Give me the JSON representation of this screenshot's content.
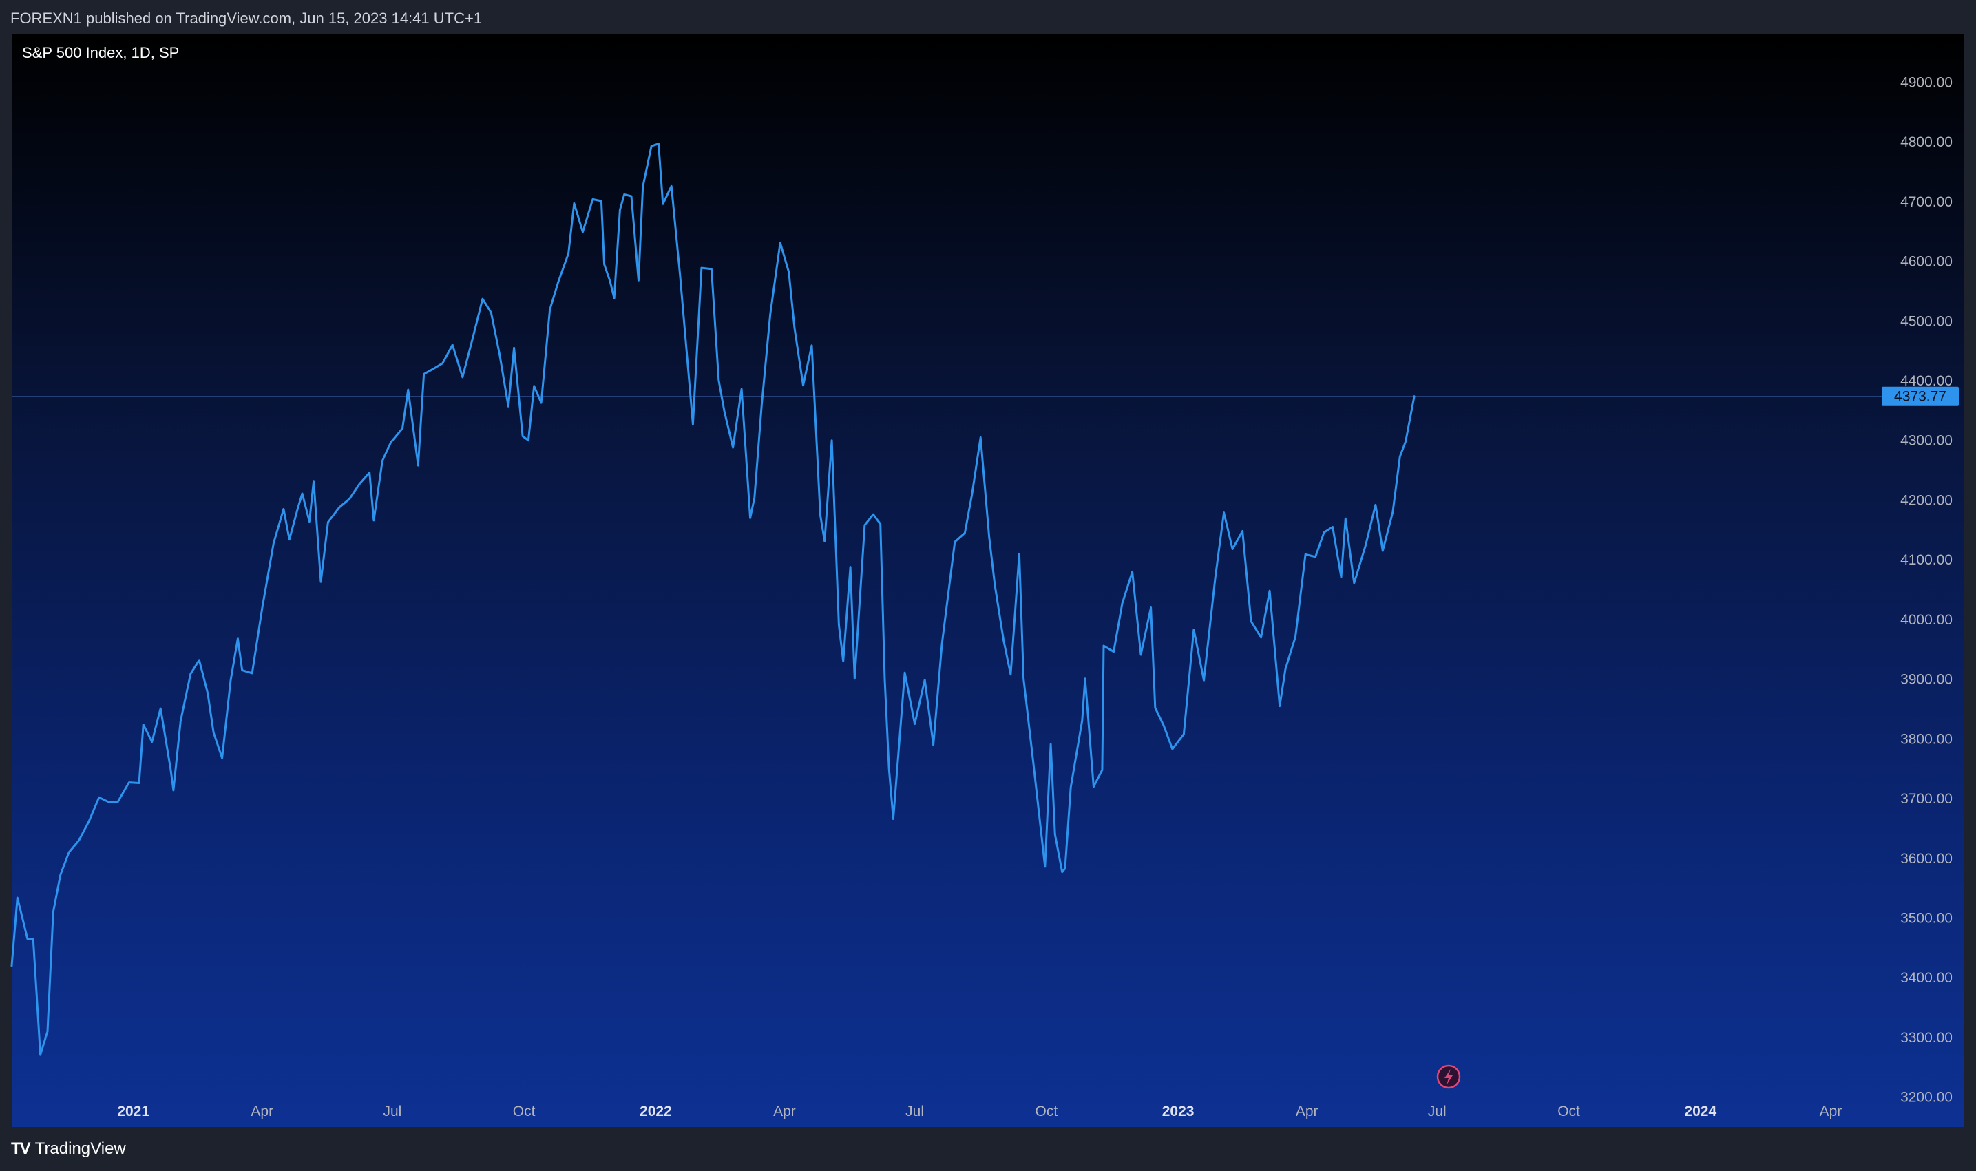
{
  "header": {
    "published": "FOREXN1 published on TradingView.com, Jun 15, 2023 14:41 UTC+1"
  },
  "footer": {
    "brand": "TradingView",
    "logo_icon": "tradingview-logo-icon"
  },
  "colors": {
    "line": "#2e93ec",
    "label_bg": "#2e93ec",
    "axis_text": "#b2b5be",
    "header_text": "#d1d4dc"
  },
  "chart_data": {
    "type": "line",
    "title": "S&P 500 Index, 1D, SP",
    "xlabel": "",
    "ylabel": "",
    "ylim": [
      3150,
      4980
    ],
    "y_ticks": [
      "4900.00",
      "4800.00",
      "4700.00",
      "4600.00",
      "4500.00",
      "4400.00",
      "4300.00",
      "4200.00",
      "4100.00",
      "4000.00",
      "3900.00",
      "3800.00",
      "3700.00",
      "3600.00",
      "3500.00",
      "3400.00",
      "3300.00",
      "3200.00"
    ],
    "x_ticks": [
      {
        "label": "2021",
        "date": "2021-01-01",
        "bold": true
      },
      {
        "label": "Apr",
        "date": "2021-04-01",
        "bold": false
      },
      {
        "label": "Jul",
        "date": "2021-07-01",
        "bold": false
      },
      {
        "label": "Oct",
        "date": "2021-10-01",
        "bold": false
      },
      {
        "label": "2022",
        "date": "2022-01-01",
        "bold": true
      },
      {
        "label": "Apr",
        "date": "2022-04-01",
        "bold": false
      },
      {
        "label": "Jul",
        "date": "2022-07-01",
        "bold": false
      },
      {
        "label": "Oct",
        "date": "2022-10-01",
        "bold": false
      },
      {
        "label": "2023",
        "date": "2023-01-01",
        "bold": true
      },
      {
        "label": "Apr",
        "date": "2023-04-01",
        "bold": false
      },
      {
        "label": "Jul",
        "date": "2023-07-01",
        "bold": false
      },
      {
        "label": "Oct",
        "date": "2023-10-01",
        "bold": false
      },
      {
        "label": "2024",
        "date": "2024-01-01",
        "bold": true
      },
      {
        "label": "Apr",
        "date": "2024-04-01",
        "bold": false
      }
    ],
    "xlim": [
      "2020-10-08",
      "2024-05-10"
    ],
    "last_price": 4373.77,
    "last_price_label": "4373.77",
    "series": [
      {
        "values": [
          [
            "2020-10-08",
            3420
          ],
          [
            "2020-10-12",
            3534
          ],
          [
            "2020-10-19",
            3465
          ],
          [
            "2020-10-23",
            3465
          ],
          [
            "2020-10-28",
            3271
          ],
          [
            "2020-11-02",
            3310
          ],
          [
            "2020-11-06",
            3510
          ],
          [
            "2020-11-11",
            3572
          ],
          [
            "2020-11-17",
            3610
          ],
          [
            "2020-11-24",
            3630
          ],
          [
            "2020-12-01",
            3662
          ],
          [
            "2020-12-08",
            3702
          ],
          [
            "2020-12-15",
            3694
          ],
          [
            "2020-12-21",
            3694
          ],
          [
            "2020-12-29",
            3727
          ],
          [
            "2021-01-05",
            3726
          ],
          [
            "2021-01-08",
            3824
          ],
          [
            "2021-01-14",
            3795
          ],
          [
            "2021-01-20",
            3851
          ],
          [
            "2021-01-27",
            3750
          ],
          [
            "2021-01-29",
            3714
          ],
          [
            "2021-02-03",
            3830
          ],
          [
            "2021-02-10",
            3909
          ],
          [
            "2021-02-16",
            3932
          ],
          [
            "2021-02-22",
            3876
          ],
          [
            "2021-02-26",
            3811
          ],
          [
            "2021-03-04",
            3768
          ],
          [
            "2021-03-10",
            3898
          ],
          [
            "2021-03-15",
            3968
          ],
          [
            "2021-03-18",
            3915
          ],
          [
            "2021-03-25",
            3910
          ],
          [
            "2021-04-01",
            4019
          ],
          [
            "2021-04-09",
            4128
          ],
          [
            "2021-04-16",
            4185
          ],
          [
            "2021-04-20",
            4134
          ],
          [
            "2021-04-26",
            4187
          ],
          [
            "2021-04-29",
            4211
          ],
          [
            "2021-05-04",
            4164
          ],
          [
            "2021-05-07",
            4232
          ],
          [
            "2021-05-12",
            4063
          ],
          [
            "2021-05-17",
            4163
          ],
          [
            "2021-05-25",
            4188
          ],
          [
            "2021-06-01",
            4202
          ],
          [
            "2021-06-08",
            4227
          ],
          [
            "2021-06-15",
            4246
          ],
          [
            "2021-06-18",
            4166
          ],
          [
            "2021-06-24",
            4266
          ],
          [
            "2021-06-30",
            4297
          ],
          [
            "2021-07-08",
            4320
          ],
          [
            "2021-07-12",
            4385
          ],
          [
            "2021-07-19",
            4258
          ],
          [
            "2021-07-23",
            4411
          ],
          [
            "2021-07-29",
            4419
          ],
          [
            "2021-08-05",
            4429
          ],
          [
            "2021-08-12",
            4460
          ],
          [
            "2021-08-19",
            4406
          ],
          [
            "2021-08-26",
            4470
          ],
          [
            "2021-09-02",
            4537
          ],
          [
            "2021-09-08",
            4514
          ],
          [
            "2021-09-14",
            4443
          ],
          [
            "2021-09-20",
            4357
          ],
          [
            "2021-09-24",
            4455
          ],
          [
            "2021-09-30",
            4307
          ],
          [
            "2021-10-04",
            4300
          ],
          [
            "2021-10-08",
            4391
          ],
          [
            "2021-10-13",
            4363
          ],
          [
            "2021-10-19",
            4519
          ],
          [
            "2021-10-25",
            4566
          ],
          [
            "2021-11-01",
            4613
          ],
          [
            "2021-11-05",
            4697
          ],
          [
            "2021-11-11",
            4649
          ],
          [
            "2021-11-18",
            4704
          ],
          [
            "2021-11-24",
            4701
          ],
          [
            "2021-11-26",
            4595
          ],
          [
            "2021-11-30",
            4567
          ],
          [
            "2021-12-03",
            4538
          ],
          [
            "2021-12-07",
            4686
          ],
          [
            "2021-12-10",
            4712
          ],
          [
            "2021-12-15",
            4709
          ],
          [
            "2021-12-20",
            4568
          ],
          [
            "2021-12-23",
            4725
          ],
          [
            "2021-12-29",
            4793
          ],
          [
            "2022-01-03",
            4797
          ],
          [
            "2022-01-06",
            4696
          ],
          [
            "2022-01-12",
            4726
          ],
          [
            "2022-01-18",
            4577
          ],
          [
            "2022-01-24",
            4410
          ],
          [
            "2022-01-27",
            4327
          ],
          [
            "2022-02-02",
            4589
          ],
          [
            "2022-02-09",
            4587
          ],
          [
            "2022-02-14",
            4401
          ],
          [
            "2022-02-18",
            4348
          ],
          [
            "2022-02-24",
            4288
          ],
          [
            "2022-03-02",
            4386
          ],
          [
            "2022-03-08",
            4170
          ],
          [
            "2022-03-11",
            4204
          ],
          [
            "2022-03-16",
            4358
          ],
          [
            "2022-03-22",
            4511
          ],
          [
            "2022-03-29",
            4631
          ],
          [
            "2022-04-04",
            4582
          ],
          [
            "2022-04-08",
            4488
          ],
          [
            "2022-04-14",
            4392
          ],
          [
            "2022-04-20",
            4459
          ],
          [
            "2022-04-26",
            4175
          ],
          [
            "2022-04-29",
            4131
          ],
          [
            "2022-05-04",
            4300
          ],
          [
            "2022-05-09",
            3991
          ],
          [
            "2022-05-12",
            3930
          ],
          [
            "2022-05-17",
            4088
          ],
          [
            "2022-05-20",
            3901
          ],
          [
            "2022-05-27",
            4158
          ],
          [
            "2022-06-02",
            4176
          ],
          [
            "2022-06-07",
            4160
          ],
          [
            "2022-06-10",
            3900
          ],
          [
            "2022-06-13",
            3750
          ],
          [
            "2022-06-16",
            3666
          ],
          [
            "2022-06-24",
            3911
          ],
          [
            "2022-07-01",
            3825
          ],
          [
            "2022-07-08",
            3899
          ],
          [
            "2022-07-14",
            3790
          ],
          [
            "2022-07-20",
            3959
          ],
          [
            "2022-07-29",
            4130
          ],
          [
            "2022-08-05",
            4145
          ],
          [
            "2022-08-10",
            4210
          ],
          [
            "2022-08-16",
            4305
          ],
          [
            "2022-08-22",
            4138
          ],
          [
            "2022-08-26",
            4057
          ],
          [
            "2022-09-01",
            3966
          ],
          [
            "2022-09-06",
            3908
          ],
          [
            "2022-09-12",
            4110
          ],
          [
            "2022-09-15",
            3901
          ],
          [
            "2022-09-22",
            3757
          ],
          [
            "2022-09-30",
            3586
          ],
          [
            "2022-10-04",
            3791
          ],
          [
            "2022-10-07",
            3640
          ],
          [
            "2022-10-12",
            3577
          ],
          [
            "2022-10-14",
            3583
          ],
          [
            "2022-10-18",
            3719
          ],
          [
            "2022-10-26",
            3831
          ],
          [
            "2022-10-28",
            3901
          ],
          [
            "2022-11-03",
            3720
          ],
          [
            "2022-11-09",
            3748
          ],
          [
            "2022-11-10",
            3956
          ],
          [
            "2022-11-17",
            3946
          ],
          [
            "2022-11-23",
            4027
          ],
          [
            "2022-11-30",
            4080
          ],
          [
            "2022-12-06",
            3941
          ],
          [
            "2022-12-13",
            4020
          ],
          [
            "2022-12-16",
            3852
          ],
          [
            "2022-12-22",
            3822
          ],
          [
            "2022-12-28",
            3783
          ],
          [
            "2023-01-05",
            3808
          ],
          [
            "2023-01-12",
            3983
          ],
          [
            "2023-01-19",
            3898
          ],
          [
            "2023-01-27",
            4070
          ],
          [
            "2023-02-02",
            4179
          ],
          [
            "2023-02-08",
            4118
          ],
          [
            "2023-02-15",
            4148
          ],
          [
            "2023-02-21",
            3997
          ],
          [
            "2023-02-28",
            3970
          ],
          [
            "2023-03-06",
            4048
          ],
          [
            "2023-03-13",
            3855
          ],
          [
            "2023-03-17",
            3917
          ],
          [
            "2023-03-24",
            3971
          ],
          [
            "2023-03-31",
            4109
          ],
          [
            "2023-04-07",
            4105
          ],
          [
            "2023-04-13",
            4146
          ],
          [
            "2023-04-19",
            4155
          ],
          [
            "2023-04-25",
            4071
          ],
          [
            "2023-04-28",
            4169
          ],
          [
            "2023-05-04",
            4061
          ],
          [
            "2023-05-12",
            4124
          ],
          [
            "2023-05-19",
            4192
          ],
          [
            "2023-05-24",
            4115
          ],
          [
            "2023-05-31",
            4180
          ],
          [
            "2023-06-05",
            4273
          ],
          [
            "2023-06-09",
            4298
          ],
          [
            "2023-06-15",
            4373.77
          ]
        ]
      }
    ]
  }
}
